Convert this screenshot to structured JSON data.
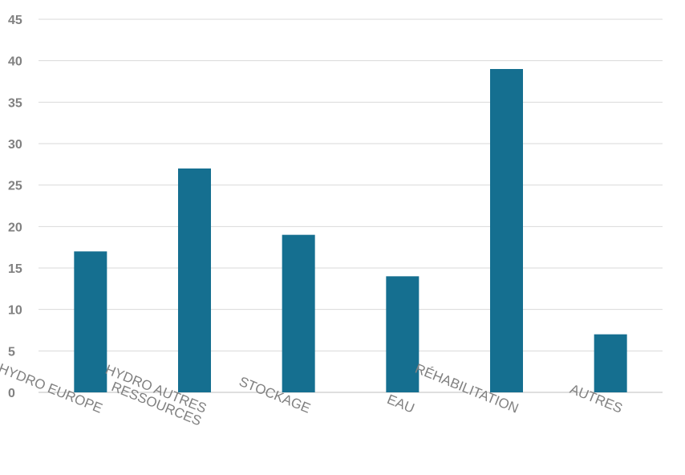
{
  "chart_data": {
    "type": "bar",
    "categories": [
      [
        "HYDRO EUROPE"
      ],
      [
        "HYDRO AUTRES",
        "RESSOURCES"
      ],
      [
        "STOCKAGE"
      ],
      [
        "EAU"
      ],
      [
        "RÉHABILITATION"
      ],
      [
        "AUTRES"
      ]
    ],
    "values": [
      17,
      27,
      19,
      14,
      39,
      7
    ],
    "ylim": [
      0,
      45
    ],
    "yticks": [
      0,
      5,
      10,
      15,
      20,
      25,
      30,
      35,
      40,
      45
    ],
    "grid": true,
    "bar_color": "#156F90",
    "title": "",
    "xlabel": "",
    "ylabel": ""
  }
}
